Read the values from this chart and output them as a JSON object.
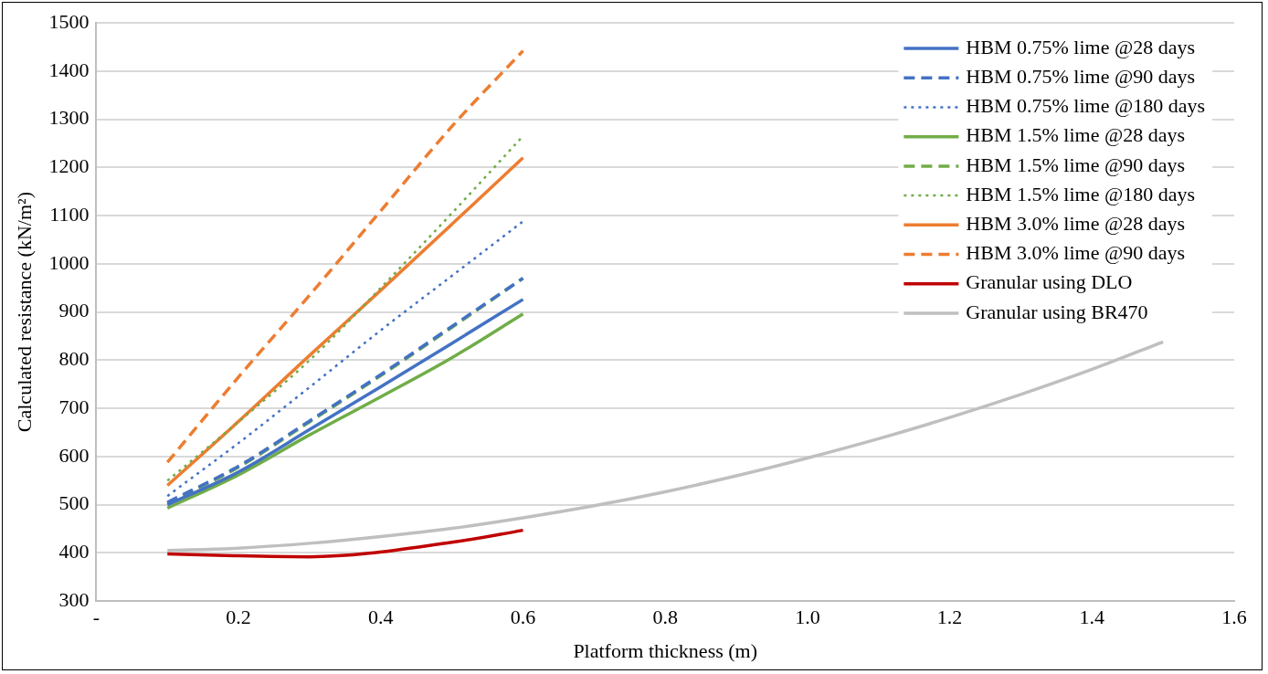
{
  "chart_data": {
    "type": "line",
    "xlabel": "Platform thickness (m)",
    "ylabel": "Calculated resistance (kN/m²)",
    "xlim": [
      0,
      1.6
    ],
    "xticks": [
      {
        "value": 0,
        "label": "-"
      },
      {
        "value": 0.2,
        "label": "0.2"
      },
      {
        "value": 0.4,
        "label": "0.4"
      },
      {
        "value": 0.6,
        "label": "0.6"
      },
      {
        "value": 0.8,
        "label": "0.8"
      },
      {
        "value": 1.0,
        "label": "1.0"
      },
      {
        "value": 1.2,
        "label": "1.2"
      },
      {
        "value": 1.4,
        "label": "1.4"
      },
      {
        "value": 1.6,
        "label": "1.6"
      }
    ],
    "ylim": [
      300,
      1500
    ],
    "yticks": [
      300,
      400,
      500,
      600,
      700,
      800,
      900,
      1000,
      1100,
      1200,
      1300,
      1400,
      1500
    ],
    "grid": "y",
    "legend": "top right",
    "marker": "none",
    "series": [
      {
        "name": "HBM 0.75% lime @28 days",
        "color": "#4472c4",
        "line_style": "solid",
        "x": [
          0.1,
          0.2,
          0.3,
          0.4,
          0.5,
          0.6
        ],
        "values": [
          500,
          568,
          656,
          745,
          835,
          926
        ]
      },
      {
        "name": "HBM 0.75% lime @90 days",
        "color": "#4472c4",
        "line_style": "dashed",
        "x": [
          0.1,
          0.2,
          0.3,
          0.4,
          0.5,
          0.6
        ],
        "values": [
          505,
          580,
          674,
          770,
          870,
          970
        ]
      },
      {
        "name": "HBM 0.75% lime @180 days",
        "color": "#4472c4",
        "line_style": "dotted",
        "x": [
          0.1,
          0.2,
          0.3,
          0.4,
          0.5,
          0.6
        ],
        "values": [
          518,
          628,
          744,
          862,
          975,
          1088
        ]
      },
      {
        "name": "HBM 1.5% lime @28 days",
        "color": "#70ad47",
        "line_style": "solid",
        "x": [
          0.1,
          0.2,
          0.3,
          0.4,
          0.5,
          0.6
        ],
        "values": [
          493,
          562,
          645,
          724,
          805,
          896
        ]
      },
      {
        "name": "HBM 1.5% lime @90 days",
        "color": "#70ad47",
        "line_style": "dashed",
        "x": [
          0.1,
          0.2,
          0.3,
          0.4,
          0.5,
          0.6
        ],
        "values": [
          503,
          578,
          672,
          768,
          868,
          970
        ]
      },
      {
        "name": "HBM 1.5% lime @180 days",
        "color": "#70ad47",
        "line_style": "dotted",
        "x": [
          0.1,
          0.2,
          0.3,
          0.4,
          0.5,
          0.6
        ],
        "values": [
          550,
          672,
          800,
          950,
          1105,
          1265
        ]
      },
      {
        "name": "HBM 3.0% lime @28 days",
        "color": "#ed7d31",
        "line_style": "solid",
        "x": [
          0.1,
          0.2,
          0.3,
          0.4,
          0.5,
          0.6
        ],
        "values": [
          540,
          673,
          810,
          945,
          1082,
          1220
        ]
      },
      {
        "name": "HBM 3.0% lime @90 days",
        "color": "#ed7d31",
        "line_style": "dashed",
        "x": [
          0.1,
          0.2,
          0.3,
          0.4,
          0.5,
          0.6
        ],
        "values": [
          588,
          765,
          935,
          1110,
          1285,
          1442
        ]
      },
      {
        "name": "Granular using DLO",
        "color": "#c00000",
        "line_style": "solid",
        "x": [
          0.1,
          0.2,
          0.3,
          0.5,
          0.6
        ],
        "values": [
          398,
          394,
          392,
          422,
          447
        ]
      },
      {
        "name": "Granular using BR470",
        "color": "#bfbfbf",
        "line_style": "solid",
        "x": [
          0.1,
          0.2,
          0.3,
          0.4,
          0.5,
          0.6,
          0.7,
          0.8,
          0.9,
          1.0,
          1.1,
          1.2,
          1.3,
          1.4,
          1.5
        ],
        "values": [
          405,
          410,
          420,
          434,
          451,
          473,
          498,
          527,
          560,
          597,
          637,
          681,
          729,
          781,
          838
        ]
      }
    ]
  }
}
